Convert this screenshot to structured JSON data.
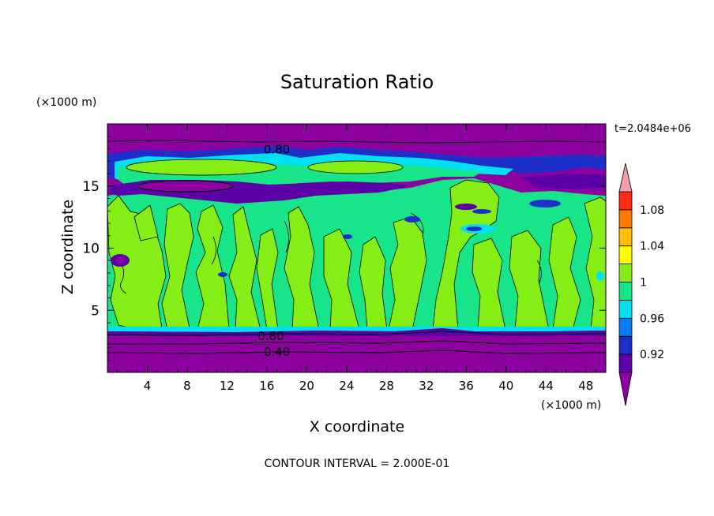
{
  "chart_data": {
    "type": "heatmap",
    "title": "Saturation Ratio",
    "xlabel": "X coordinate",
    "ylabel": "Z coordinate",
    "x_unit": "(×1000 m)",
    "y_unit": "(×1000 m)",
    "time_label": "t=2.0484e+06",
    "footer": "CONTOUR INTERVAL = 2.000E-01",
    "xlim": [
      0,
      50
    ],
    "ylim": [
      0,
      20
    ],
    "x_ticks": [
      4,
      8,
      12,
      16,
      20,
      24,
      28,
      32,
      36,
      40,
      44,
      48
    ],
    "y_ticks": [
      5,
      10,
      15
    ],
    "contour_labels": [
      {
        "text": "0.80",
        "x": 17.0,
        "z": 18.0
      },
      {
        "text": "0.80",
        "x": 16.4,
        "z": 3.0
      },
      {
        "text": "0.40",
        "x": 17.0,
        "z": 1.7
      }
    ],
    "colorbar": {
      "levels": [
        0.9,
        0.92,
        0.94,
        0.96,
        0.98,
        1.0,
        1.02,
        1.04,
        1.06,
        1.08,
        1.1
      ],
      "tick_labels": [
        "0.92",
        "0.96",
        "1",
        "1.04",
        "1.08"
      ],
      "colors": [
        "#8c00a0",
        "#5a00a6",
        "#1e2ec8",
        "#0a7cf0",
        "#00e0f0",
        "#18e48a",
        "#84ee16",
        "#ffff00",
        "#ffc000",
        "#ff7a00",
        "#ff2a14",
        "#f0a0a8"
      ]
    },
    "regions": {
      "top_band": "values below 0.90 (z 17.5–20)",
      "middle": "mostly 0.98–1.02 (z 3.5–15)",
      "bottom_band": "values below 0.90 (z 0–3.5)"
    }
  }
}
